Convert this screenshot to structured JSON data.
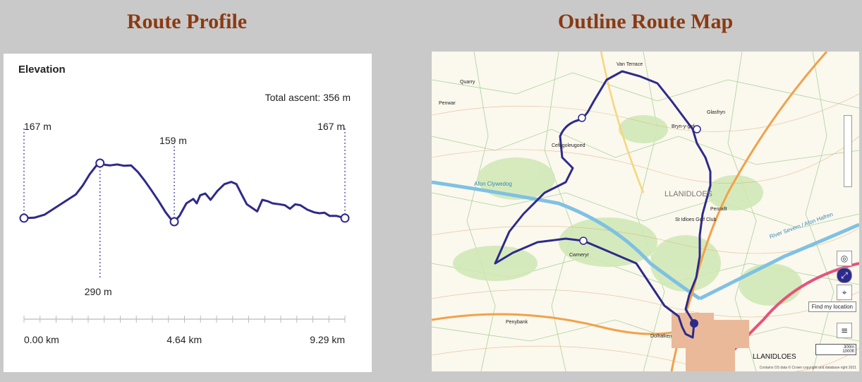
{
  "headings": {
    "left": "Route Profile",
    "right": "Outline Route Map"
  },
  "profile": {
    "title": "Elevation",
    "total_ascent": "Total ascent: 356 m"
  },
  "chart_data": {
    "type": "line",
    "title": "Elevation",
    "xlabel": "",
    "ylabel": "",
    "x_unit": "km",
    "y_unit": "m",
    "x_ticks": [
      "0.00 km",
      "4.64 km",
      "9.29 km"
    ],
    "xlim": [
      0,
      9.29
    ],
    "ylim": [
      150,
      300
    ],
    "total_ascent_m": 356,
    "series": [
      {
        "points": [
          [
            0.0,
            167
          ],
          [
            0.3,
            168
          ],
          [
            0.6,
            175
          ],
          [
            0.9,
            190
          ],
          [
            1.2,
            205
          ],
          [
            1.5,
            220
          ],
          [
            1.7,
            240
          ],
          [
            1.9,
            265
          ],
          [
            2.1,
            285
          ],
          [
            2.2,
            290
          ],
          [
            2.35,
            286
          ],
          [
            2.5,
            285
          ],
          [
            2.7,
            287
          ],
          [
            2.9,
            284
          ],
          [
            3.1,
            285
          ],
          [
            3.3,
            270
          ],
          [
            3.5,
            250
          ],
          [
            3.7,
            228
          ],
          [
            3.9,
            205
          ],
          [
            4.1,
            180
          ],
          [
            4.25,
            165
          ],
          [
            4.35,
            159
          ],
          [
            4.5,
            172
          ],
          [
            4.7,
            200
          ],
          [
            4.9,
            210
          ],
          [
            5.0,
            200
          ],
          [
            5.1,
            218
          ],
          [
            5.25,
            222
          ],
          [
            5.4,
            208
          ],
          [
            5.6,
            228
          ],
          [
            5.8,
            243
          ],
          [
            6.0,
            248
          ],
          [
            6.15,
            243
          ],
          [
            6.3,
            220
          ],
          [
            6.45,
            198
          ],
          [
            6.6,
            190
          ],
          [
            6.75,
            182
          ],
          [
            6.9,
            208
          ],
          [
            7.05,
            205
          ],
          [
            7.2,
            200
          ],
          [
            7.4,
            198
          ],
          [
            7.55,
            196
          ],
          [
            7.7,
            188
          ],
          [
            7.85,
            198
          ],
          [
            8.0,
            196
          ],
          [
            8.2,
            186
          ],
          [
            8.4,
            180
          ],
          [
            8.55,
            178
          ],
          [
            8.7,
            179
          ],
          [
            8.85,
            172
          ],
          [
            9.05,
            172
          ],
          [
            9.29,
            167
          ]
        ]
      }
    ],
    "annotations": [
      {
        "x": 0.0,
        "y": 167,
        "label": "167 m"
      },
      {
        "x": 2.2,
        "y": 290,
        "label": "290 m"
      },
      {
        "x": 4.35,
        "y": 159,
        "label": "159 m"
      },
      {
        "x": 9.29,
        "y": 167,
        "label": "167 m"
      }
    ]
  },
  "map": {
    "place_labels": [
      "LLANIDLOES",
      "LLANIDLOES",
      "Penrallt",
      "Glasfryn",
      "Cefngoleugoed",
      "Afon Clywedog",
      "River Severn / Afon Hafren",
      "St Idloes Golf Club",
      "Cwmeryr",
      "Van Terrace",
      "Penybank",
      "Bryn-y-gof",
      "Quarry",
      "Penwar",
      "Dolhafren"
    ],
    "find_location": "Find my location",
    "scale_m": "300m",
    "scale_ft": "1000ft",
    "credit": "Contains OS data © Crown copyright and database right 2021",
    "colors": {
      "route": "#2e2a8c",
      "river": "#7fc1e3",
      "road_a": "#e7527a",
      "road_b": "#f2a14a",
      "woodland": "#cfe8b4"
    }
  }
}
